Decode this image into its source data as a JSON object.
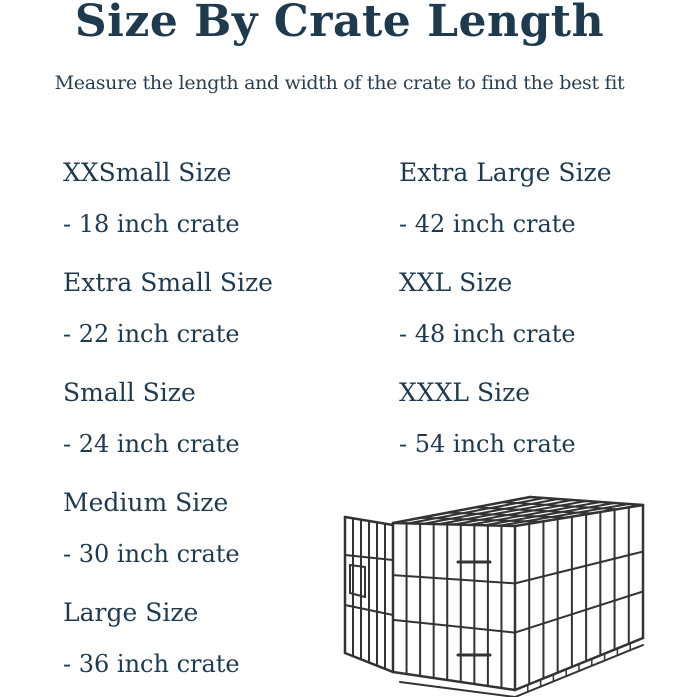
{
  "title": "Size By Crate Length",
  "subtitle": "Measure the length and width of the crate to find the best fit",
  "left_column": [
    {
      "name": "XXSmall Size",
      "value": "- 18 inch crate"
    },
    {
      "name": "Extra Small Size",
      "value": "- 22 inch crate"
    },
    {
      "name": "Small Size",
      "value": "- 24 inch crate"
    },
    {
      "name": "Medium Size",
      "value": "- 30 inch crate"
    },
    {
      "name": "Large Size",
      "value": "- 36 inch crate"
    }
  ],
  "right_column": [
    {
      "name": "Extra Large Size",
      "value": "- 42 inch crate"
    },
    {
      "name": "XXL Size",
      "value": "- 48 inch crate"
    },
    {
      "name": "XXXL Size",
      "value": "- 54 inch crate"
    }
  ],
  "colors": {
    "text": "#1d3a4f",
    "illustration": "#333333"
  },
  "illustration": "wire-dog-crate-icon"
}
